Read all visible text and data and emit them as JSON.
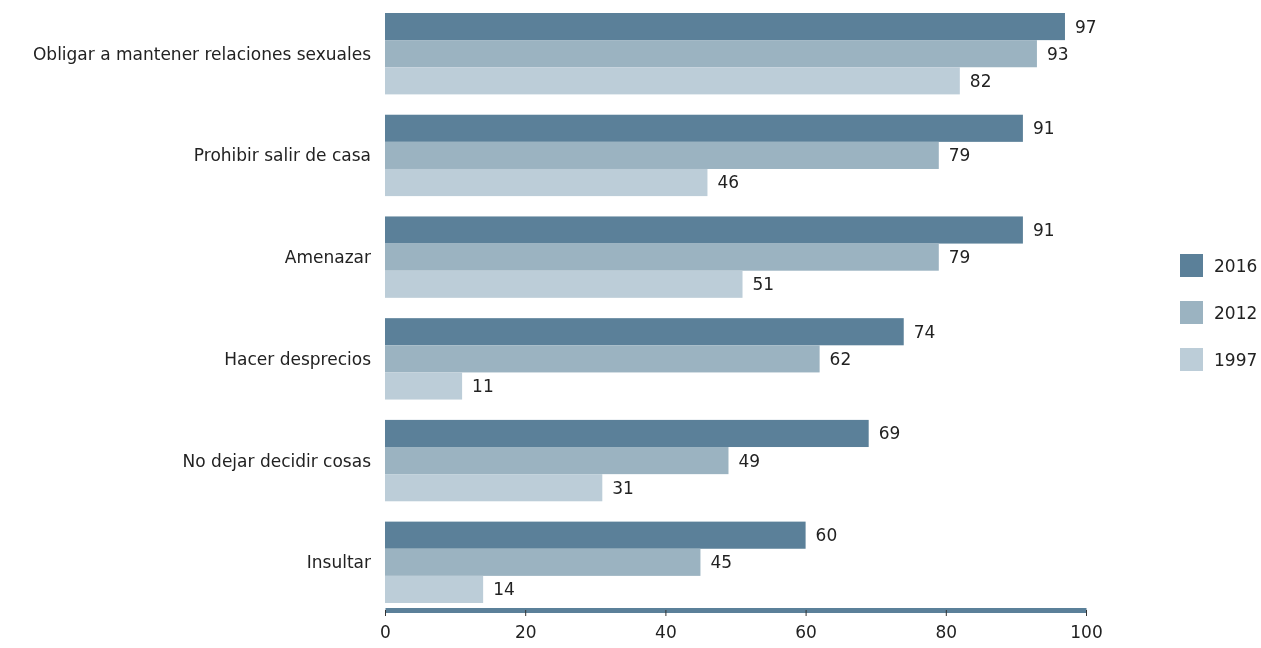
{
  "chart_data": {
    "type": "bar",
    "orientation": "horizontal",
    "categories": [
      "Obligar a mantener relaciones sexuales",
      "Prohibir salir de casa",
      "Amenazar",
      "Hacer desprecios",
      "No dejar decidir cosas",
      "Insultar"
    ],
    "series": [
      {
        "name": "2016",
        "color": "#5b8099",
        "values": [
          97,
          91,
          91,
          74,
          69,
          60
        ]
      },
      {
        "name": "2012",
        "color": "#9bb3c1",
        "values": [
          93,
          79,
          79,
          62,
          49,
          45
        ]
      },
      {
        "name": "1997",
        "color": "#bccdd8",
        "values": [
          82,
          46,
          51,
          11,
          31,
          14
        ]
      }
    ],
    "xlim": [
      0,
      100
    ],
    "xticks": [
      0,
      20,
      40,
      60,
      80,
      100
    ],
    "data_labels": true,
    "legend": "right",
    "grid": false
  }
}
